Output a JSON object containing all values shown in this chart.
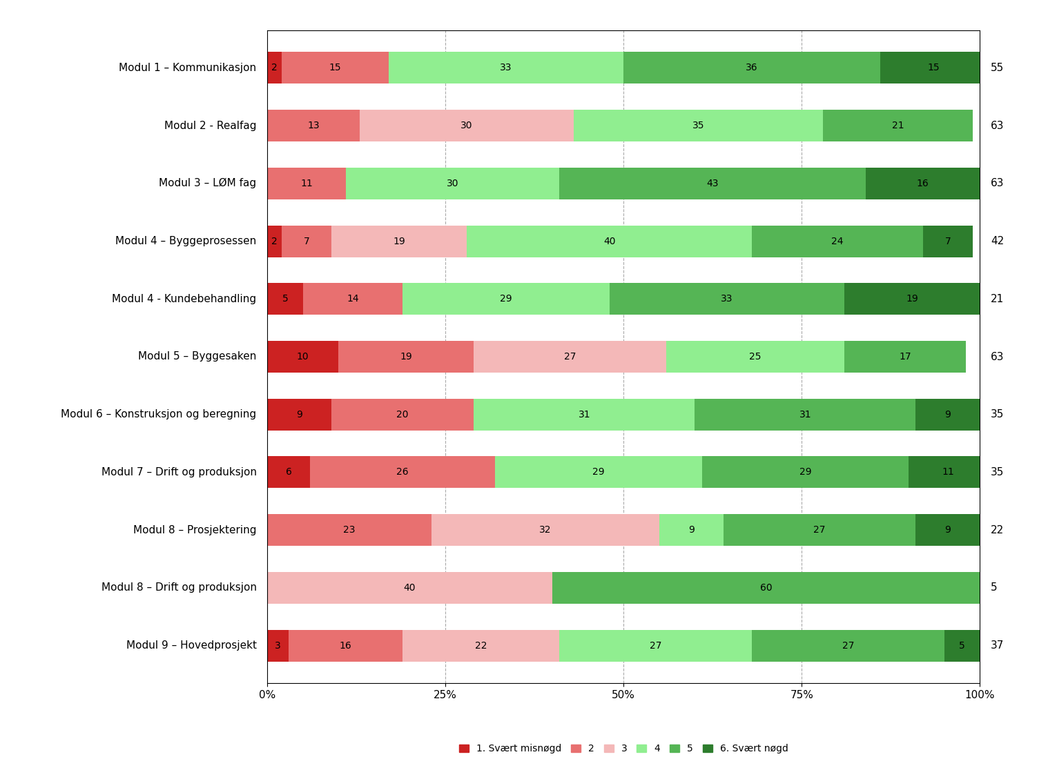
{
  "categories": [
    "Modul 1 – Kommunikasjon",
    "Modul 2 - Realfag",
    "Modul 3 – LØM fag",
    "Modul 4 – Byggeprosessen",
    "Modul 4 - Kundebehandling",
    "Modul 5 – Byggesaken",
    "Modul 6 – Konstruksjon og beregning",
    "Modul 7 – Drift og produksjon",
    "Modul 8 – Prosjektering",
    "Modul 8 – Drift og produksjon",
    "Modul 9 – Hovedprosjekt"
  ],
  "n_values": [
    55,
    63,
    63,
    42,
    21,
    63,
    35,
    35,
    22,
    5,
    37
  ],
  "data": [
    [
      2,
      15,
      0,
      33,
      36,
      15
    ],
    [
      0,
      13,
      30,
      35,
      21,
      0
    ],
    [
      0,
      11,
      0,
      30,
      43,
      16
    ],
    [
      2,
      7,
      19,
      40,
      24,
      7
    ],
    [
      5,
      14,
      0,
      29,
      33,
      19
    ],
    [
      10,
      19,
      27,
      25,
      17,
      0
    ],
    [
      9,
      20,
      0,
      31,
      31,
      9
    ],
    [
      6,
      26,
      0,
      29,
      29,
      11
    ],
    [
      0,
      23,
      32,
      9,
      27,
      9
    ],
    [
      0,
      0,
      40,
      0,
      60,
      0
    ],
    [
      3,
      16,
      22,
      27,
      27,
      5
    ]
  ],
  "colors": [
    "#cc2222",
    "#e87070",
    "#f4b8b8",
    "#90ee90",
    "#55b555",
    "#2d7d2d"
  ],
  "legend_labels": [
    "1. Svært misnøgd",
    "2",
    "3",
    "4",
    "5",
    "6. Svært nøgd"
  ],
  "background_color": "#ffffff",
  "bar_height": 0.55,
  "fontsize_labels": 11,
  "fontsize_bar_text": 10,
  "fontsize_n": 11,
  "fontsize_legend": 10,
  "fontsize_xtick": 11
}
